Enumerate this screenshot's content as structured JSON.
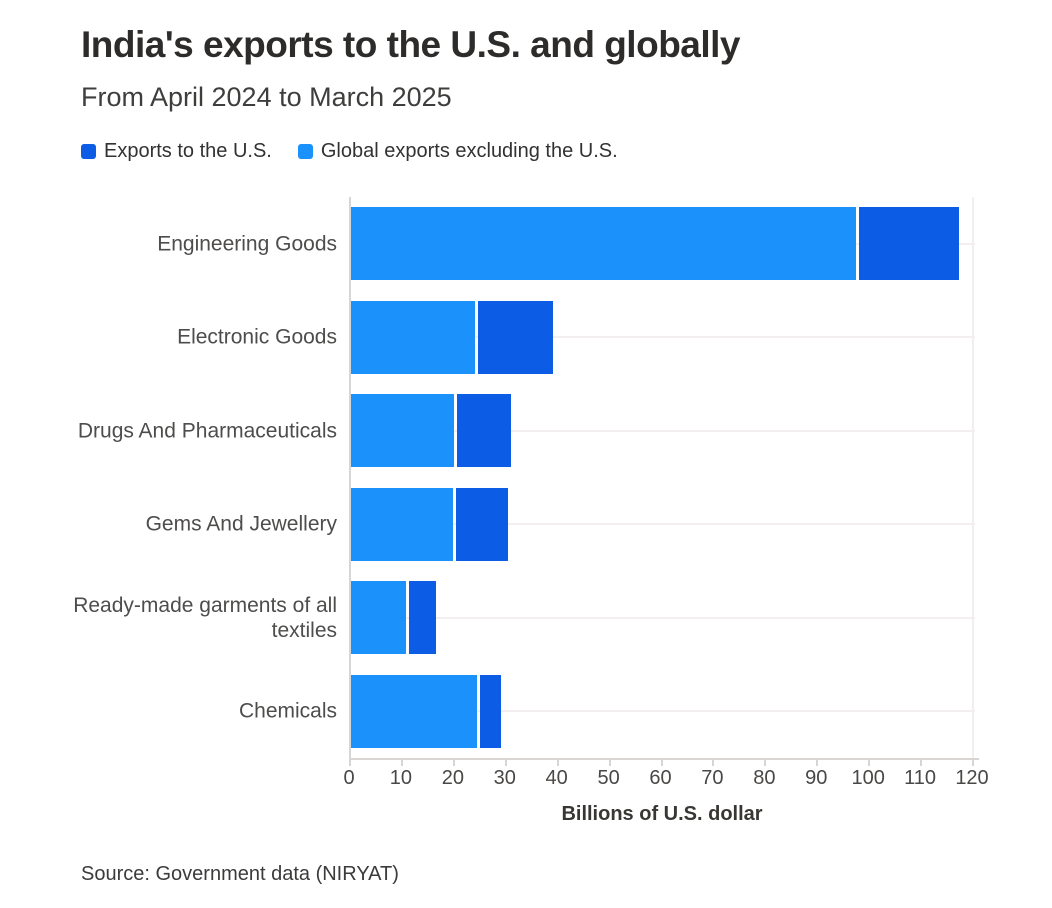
{
  "header": {
    "title": "India's exports to the U.S. and globally",
    "subtitle": "From April 2024 to March 2025"
  },
  "legend": [
    {
      "label": "Exports to the U.S.",
      "color": "#0d5ce6"
    },
    {
      "label": "Global exports excluding the U.S.",
      "color": "#1b91fb"
    }
  ],
  "colors": {
    "exports_us": "#0d5ce6",
    "global_excl_us": "#1b91fb",
    "gridline": "#f3efef",
    "axis": "#d9d5d3"
  },
  "chart_data": {
    "type": "bar",
    "orientation": "horizontal",
    "stacked": true,
    "title": "India's exports to the U.S. and globally",
    "subtitle": "From April 2024 to March 2025",
    "categories": [
      "Engineering Goods",
      "Electronic Goods",
      "Drugs And Pharmaceuticals",
      "Gems And Jewellery",
      "Ready-made garments of all textiles",
      "Chemicals"
    ],
    "series": [
      {
        "name": "Global exports excluding the U.S.",
        "color": "#1b91fb",
        "values": [
          97.5,
          24.0,
          20.0,
          19.8,
          10.7,
          24.5
        ]
      },
      {
        "name": "Exports to the U.S.",
        "color": "#0d5ce6",
        "values": [
          19.2,
          14.5,
          10.5,
          10.0,
          5.3,
          4.0
        ]
      }
    ],
    "totals": [
      116.7,
      38.5,
      30.5,
      29.8,
      16.0,
      28.5
    ],
    "xlabel": "Billions of U.S. dollar",
    "xlim": [
      0,
      120
    ],
    "x_ticks": [
      0,
      10,
      20,
      30,
      40,
      50,
      60,
      70,
      80,
      90,
      100,
      110,
      120
    ],
    "grid": "horizontal lines at each category center",
    "legend_position": "top-left"
  },
  "footer": {
    "source": "Source: Government data (NIRYAT)"
  }
}
